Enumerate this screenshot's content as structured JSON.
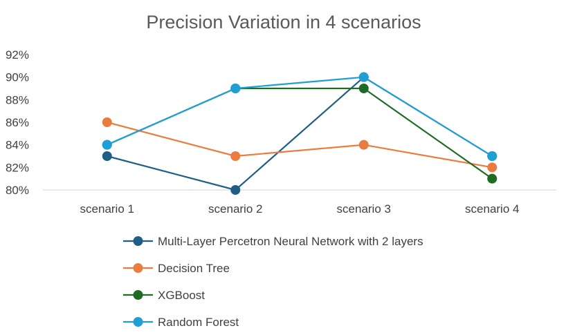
{
  "chart_data": {
    "type": "line",
    "title": "Precision Variation in 4 scenarios",
    "xlabel": "",
    "ylabel": "",
    "categories": [
      "scenario 1",
      "scenario 2",
      "scenario 3",
      "scenario 4"
    ],
    "y_ticks": [
      "80%",
      "82%",
      "84%",
      "86%",
      "88%",
      "90%",
      "92%"
    ],
    "ylim": [
      80,
      92
    ],
    "y_unit": "%",
    "grid": false,
    "legend_position": "bottom",
    "series": [
      {
        "name": "Multi-Layer Percetron Neural Network with 2 layers",
        "color": "#1f5f85",
        "values": [
          83,
          80,
          90,
          83
        ]
      },
      {
        "name": "Decision Tree",
        "color": "#e97c3e",
        "values": [
          86,
          83,
          84,
          82
        ]
      },
      {
        "name": "XGBoost",
        "color": "#1e6b24",
        "values": [
          84,
          89,
          89,
          81
        ]
      },
      {
        "name": "Random Forest",
        "color": "#1e9fd6",
        "values": [
          84,
          89,
          90,
          83
        ]
      }
    ]
  }
}
